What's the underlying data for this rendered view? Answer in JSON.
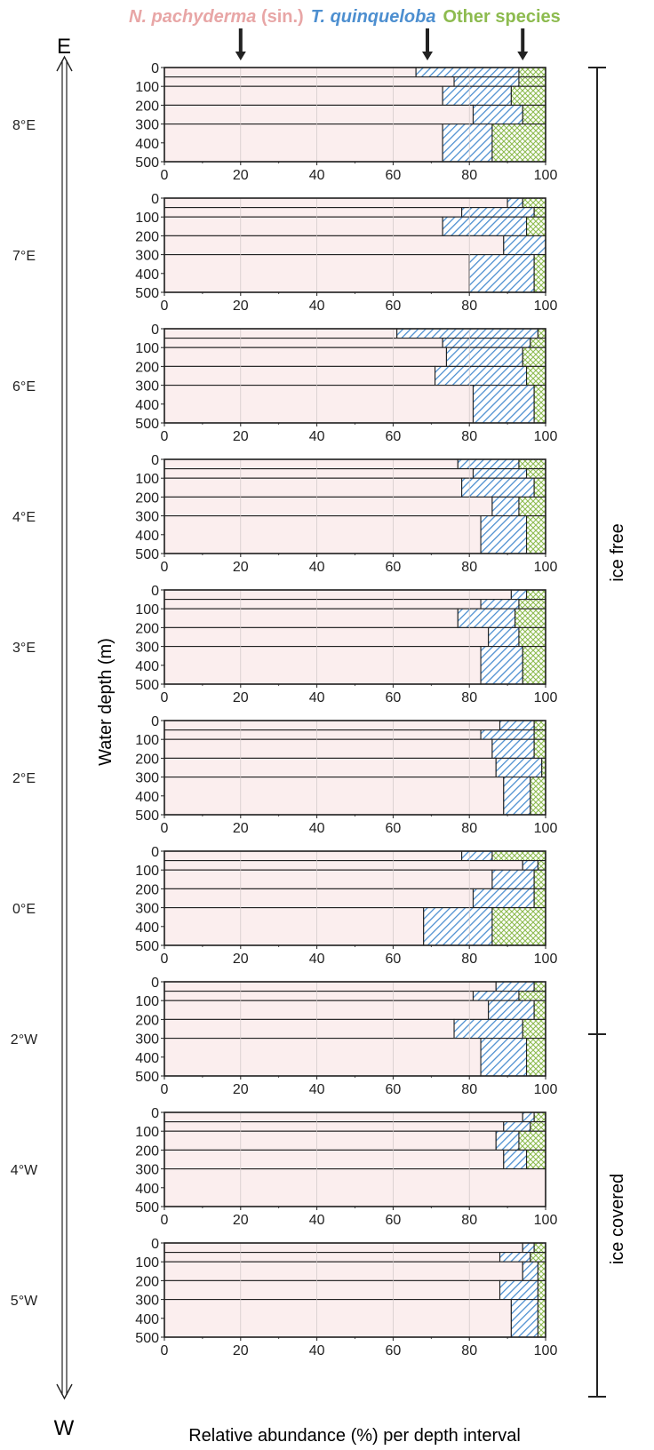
{
  "legend": {
    "n_pachyderma_italic": "N. pachyderma",
    "n_pachyderma_suffix": " (sin.)",
    "t_quinqueloba": "T. quinqueloba",
    "other": "Other species",
    "colors": {
      "n_pachyderma": "#e8a6a6",
      "t_quinqueloba": "#4d8fd0",
      "other": "#8dbb4f"
    }
  },
  "labels": {
    "compass_east": "E",
    "compass_west": "W",
    "ylabel": "Water depth (m)",
    "xlabel": "Relative abundance (%) per depth interval",
    "ice_free": "ice free",
    "ice_covered": "ice covered"
  },
  "chart_data": {
    "type": "bar",
    "orientation": "horizontal-stacked",
    "xlim": [
      0,
      100
    ],
    "xticks": [
      "0",
      "20",
      "40",
      "60",
      "80",
      "100"
    ],
    "yticks": [
      "0",
      "100",
      "200",
      "300",
      "400",
      "500"
    ],
    "ylim": [
      0,
      500
    ],
    "xlabel": "Relative abundance (%) per depth interval",
    "ylabel": "Water depth (m)",
    "grid": true,
    "arrows_at_x": [
      20,
      69,
      94
    ],
    "series_names": [
      "N. pachyderma (sin.)",
      "T. quinqueloba",
      "Other species"
    ],
    "panels": [
      {
        "label": "8°E",
        "intervals": [
          {
            "depth": [
              0,
              50
            ],
            "values": [
              66,
              27,
              7
            ]
          },
          {
            "depth": [
              50,
              100
            ],
            "values": [
              76,
              17,
              7
            ]
          },
          {
            "depth": [
              100,
              200
            ],
            "values": [
              73,
              18,
              9
            ]
          },
          {
            "depth": [
              200,
              300
            ],
            "values": [
              81,
              13,
              6
            ]
          },
          {
            "depth": [
              300,
              500
            ],
            "values": [
              73,
              13,
              14
            ]
          }
        ]
      },
      {
        "label": "7°E",
        "intervals": [
          {
            "depth": [
              0,
              50
            ],
            "values": [
              90,
              4,
              6
            ]
          },
          {
            "depth": [
              50,
              100
            ],
            "values": [
              78,
              19,
              3
            ]
          },
          {
            "depth": [
              100,
              200
            ],
            "values": [
              73,
              22,
              5
            ]
          },
          {
            "depth": [
              200,
              300
            ],
            "values": [
              89,
              11,
              0
            ]
          },
          {
            "depth": [
              300,
              500
            ],
            "values": [
              80,
              17,
              3
            ]
          }
        ]
      },
      {
        "label": "6°E",
        "intervals": [
          {
            "depth": [
              0,
              50
            ],
            "values": [
              61,
              37,
              2
            ]
          },
          {
            "depth": [
              50,
              100
            ],
            "values": [
              73,
              23,
              4
            ]
          },
          {
            "depth": [
              100,
              200
            ],
            "values": [
              74,
              20,
              6
            ]
          },
          {
            "depth": [
              200,
              300
            ],
            "values": [
              71,
              24,
              5
            ]
          },
          {
            "depth": [
              300,
              500
            ],
            "values": [
              81,
              16,
              3
            ]
          }
        ]
      },
      {
        "label": "4°E",
        "intervals": [
          {
            "depth": [
              0,
              50
            ],
            "values": [
              77,
              16,
              7
            ]
          },
          {
            "depth": [
              50,
              100
            ],
            "values": [
              81,
              14,
              5
            ]
          },
          {
            "depth": [
              100,
              200
            ],
            "values": [
              78,
              19,
              3
            ]
          },
          {
            "depth": [
              200,
              300
            ],
            "values": [
              86,
              7,
              7
            ]
          },
          {
            "depth": [
              300,
              500
            ],
            "values": [
              83,
              12,
              5
            ]
          }
        ]
      },
      {
        "label": "3°E",
        "intervals": [
          {
            "depth": [
              0,
              50
            ],
            "values": [
              91,
              4,
              5
            ]
          },
          {
            "depth": [
              50,
              100
            ],
            "values": [
              83,
              10,
              7
            ]
          },
          {
            "depth": [
              100,
              200
            ],
            "values": [
              77,
              15,
              8
            ]
          },
          {
            "depth": [
              200,
              300
            ],
            "values": [
              85,
              8,
              7
            ]
          },
          {
            "depth": [
              300,
              500
            ],
            "values": [
              83,
              11,
              6
            ]
          }
        ]
      },
      {
        "label": "2°E",
        "intervals": [
          {
            "depth": [
              0,
              50
            ],
            "values": [
              88,
              9,
              3
            ]
          },
          {
            "depth": [
              50,
              100
            ],
            "values": [
              83,
              14,
              3
            ]
          },
          {
            "depth": [
              100,
              200
            ],
            "values": [
              86,
              11,
              3
            ]
          },
          {
            "depth": [
              200,
              300
            ],
            "values": [
              87,
              12,
              1
            ]
          },
          {
            "depth": [
              300,
              500
            ],
            "values": [
              89,
              7,
              4
            ]
          }
        ]
      },
      {
        "label": "0°E",
        "intervals": [
          {
            "depth": [
              0,
              50
            ],
            "values": [
              78,
              8,
              14
            ]
          },
          {
            "depth": [
              50,
              100
            ],
            "values": [
              94,
              4,
              2
            ]
          },
          {
            "depth": [
              100,
              200
            ],
            "values": [
              86,
              11,
              3
            ]
          },
          {
            "depth": [
              200,
              300
            ],
            "values": [
              81,
              16,
              3
            ]
          },
          {
            "depth": [
              300,
              500
            ],
            "values": [
              68,
              18,
              14
            ]
          }
        ]
      },
      {
        "label": "2°W",
        "intervals": [
          {
            "depth": [
              0,
              50
            ],
            "values": [
              87,
              10,
              3
            ]
          },
          {
            "depth": [
              50,
              100
            ],
            "values": [
              81,
              12,
              7
            ]
          },
          {
            "depth": [
              100,
              200
            ],
            "values": [
              85,
              12,
              3
            ]
          },
          {
            "depth": [
              200,
              300
            ],
            "values": [
              76,
              18,
              6
            ]
          },
          {
            "depth": [
              300,
              500
            ],
            "values": [
              83,
              12,
              5
            ]
          }
        ]
      },
      {
        "label": "4°W",
        "intervals": [
          {
            "depth": [
              0,
              50
            ],
            "values": [
              94,
              3,
              3
            ]
          },
          {
            "depth": [
              50,
              100
            ],
            "values": [
              89,
              7,
              4
            ]
          },
          {
            "depth": [
              100,
              200
            ],
            "values": [
              87,
              6,
              7
            ]
          },
          {
            "depth": [
              200,
              300
            ],
            "values": [
              89,
              6,
              5
            ]
          },
          {
            "depth": [
              300,
              500
            ],
            "values": [
              100,
              0,
              0
            ]
          }
        ]
      },
      {
        "label": "5°W",
        "intervals": [
          {
            "depth": [
              0,
              50
            ],
            "values": [
              94,
              3,
              3
            ]
          },
          {
            "depth": [
              50,
              100
            ],
            "values": [
              88,
              8,
              4
            ]
          },
          {
            "depth": [
              100,
              200
            ],
            "values": [
              94,
              4,
              2
            ]
          },
          {
            "depth": [
              200,
              300
            ],
            "values": [
              88,
              10,
              2
            ]
          },
          {
            "depth": [
              300,
              500
            ],
            "values": [
              91,
              7,
              2
            ]
          }
        ]
      }
    ]
  }
}
